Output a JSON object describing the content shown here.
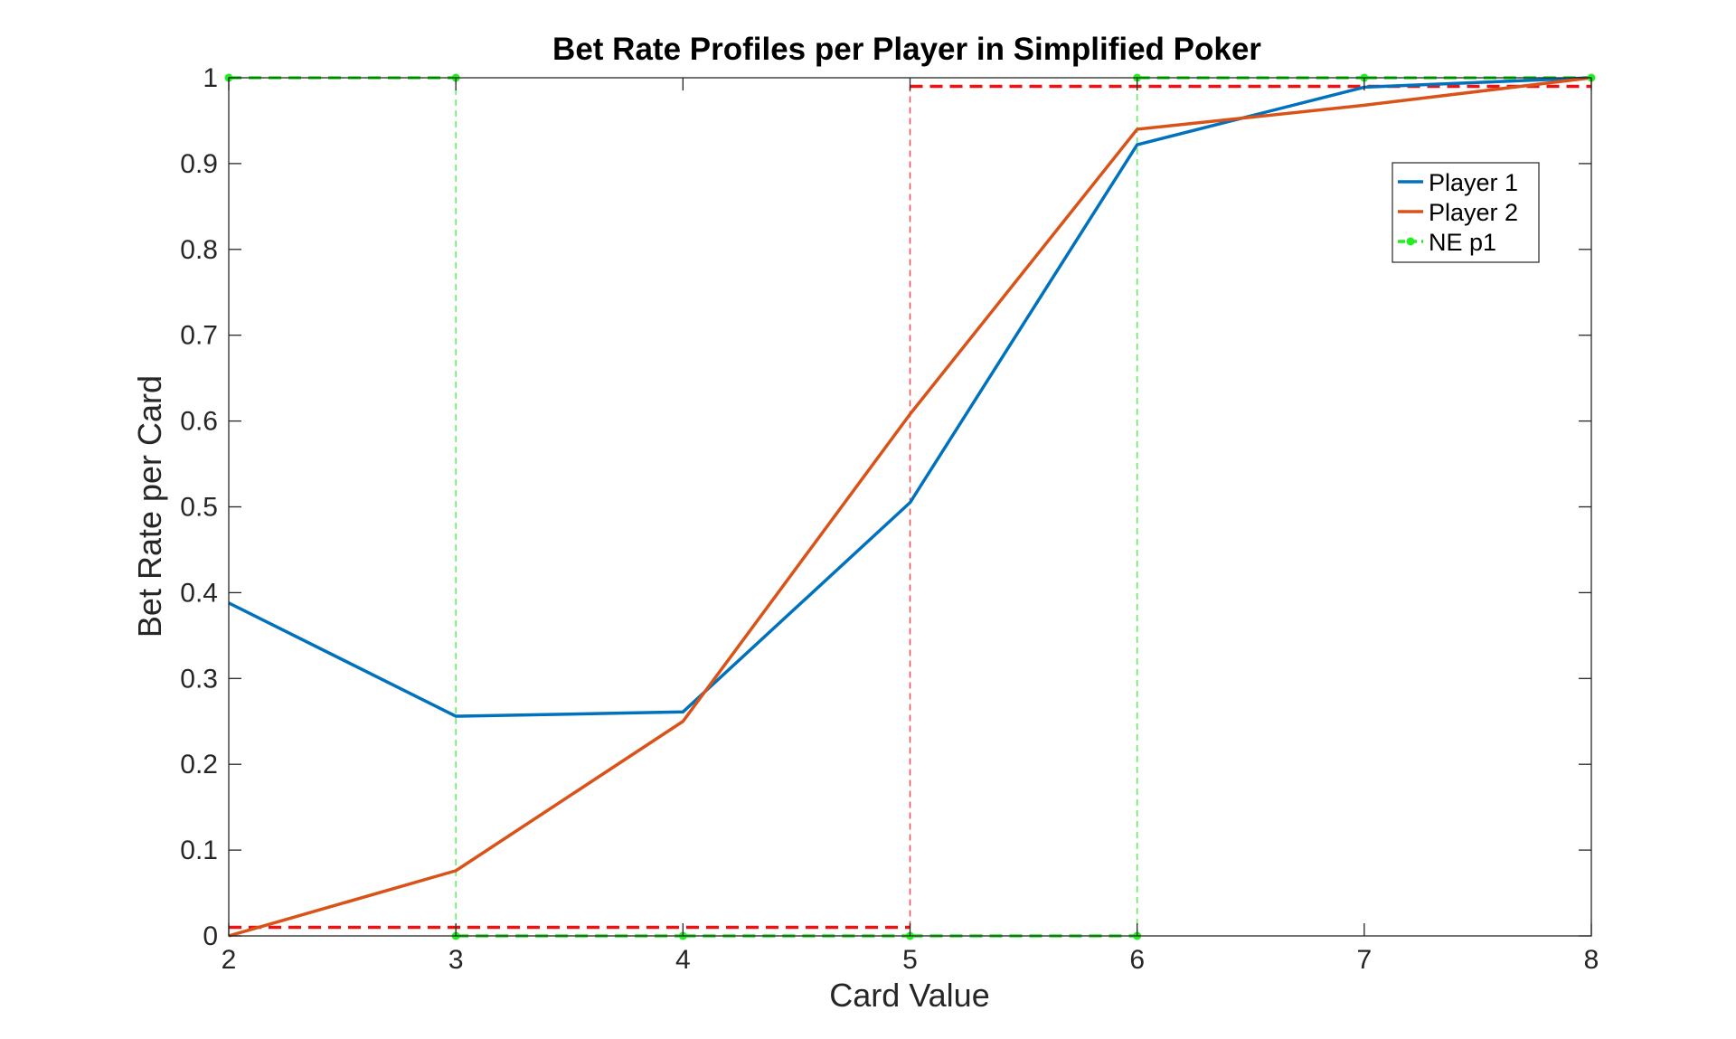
{
  "chart_data": {
    "type": "line",
    "title": "Bet Rate Profiles per Player in Simplified Poker",
    "xlabel": "Card Value",
    "ylabel": "Bet Rate per Card",
    "xlim": [
      2,
      8
    ],
    "ylim": [
      0,
      1
    ],
    "x_ticks": [
      "2",
      "3",
      "4",
      "5",
      "6",
      "7",
      "8"
    ],
    "y_ticks": [
      "0",
      "0.1",
      "0.2",
      "0.3",
      "0.4",
      "0.5",
      "0.6",
      "0.7",
      "0.8",
      "0.9",
      "1"
    ],
    "grid": false,
    "legend_position": "top-right",
    "series": [
      {
        "name": "Player 1",
        "color": "#0072BD",
        "style": "solid",
        "x": [
          2,
          3,
          4,
          5,
          6,
          7,
          8
        ],
        "y": [
          0.388,
          0.256,
          0.261,
          0.505,
          0.922,
          0.989,
          1.0
        ]
      },
      {
        "name": "Player 2",
        "color": "#D95319",
        "style": "solid",
        "x": [
          2,
          3,
          4,
          5,
          6,
          7,
          8
        ],
        "y": [
          0.0,
          0.076,
          0.25,
          0.608,
          0.94,
          0.968,
          1.0
        ]
      },
      {
        "name": "NE p1",
        "color": "#22EE22",
        "style": "dashed-markers",
        "x": [
          2,
          3,
          3,
          4,
          5,
          6,
          6,
          7,
          8
        ],
        "y": [
          1.0,
          1.0,
          0.0,
          0.0,
          0.0,
          0.0,
          1.0,
          1.0,
          1.0
        ]
      }
    ],
    "extra_lines": [
      {
        "color": "#EE1111",
        "style": "dashed",
        "x": [
          2,
          5,
          5,
          8
        ],
        "y": [
          0.01,
          0.01,
          0.99,
          0.99
        ]
      }
    ]
  }
}
